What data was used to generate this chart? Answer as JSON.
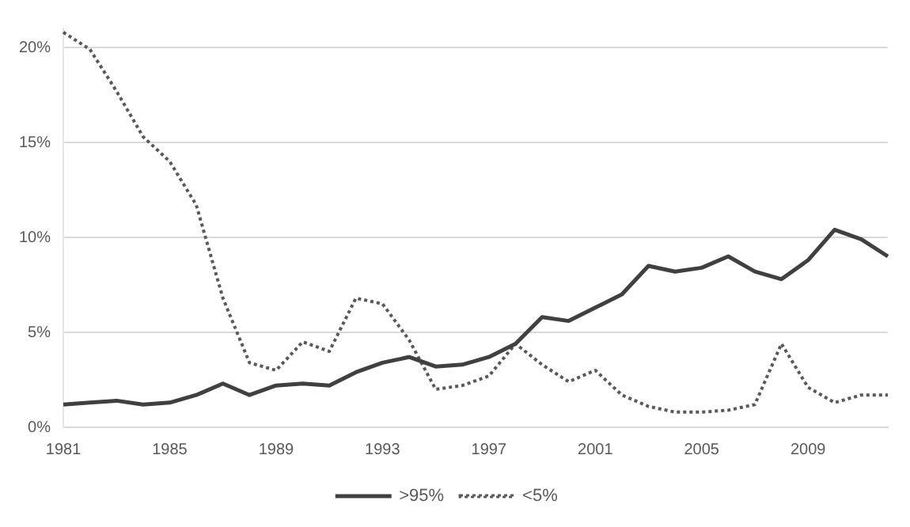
{
  "chart_data": {
    "type": "line",
    "categories": [
      "1981",
      null,
      null,
      null,
      "1985",
      null,
      null,
      null,
      "1989",
      null,
      null,
      null,
      "1993",
      null,
      null,
      null,
      "1997",
      null,
      null,
      null,
      "2001",
      null,
      null,
      null,
      "2005",
      null,
      null,
      null,
      "2009",
      null,
      null,
      null
    ],
    "series": [
      {
        "name": ">95%",
        "color": "#404040",
        "line_style": "solid",
        "values": [
          1.2,
          1.3,
          1.4,
          1.2,
          1.3,
          1.7,
          2.3,
          1.7,
          2.2,
          2.3,
          2.2,
          2.9,
          3.4,
          3.7,
          3.2,
          3.3,
          3.7,
          4.4,
          5.8,
          5.6,
          6.3,
          7.0,
          8.5,
          8.2,
          8.4,
          9.0,
          8.2,
          7.8,
          8.8,
          10.4,
          9.9,
          9.0
        ]
      },
      {
        "name": "<5%",
        "color": "#595959",
        "line_style": "dotted",
        "values": [
          20.8,
          19.9,
          17.7,
          15.3,
          14.0,
          11.7,
          6.8,
          3.4,
          3.0,
          4.5,
          4.0,
          6.8,
          6.5,
          4.6,
          2.0,
          2.2,
          2.7,
          4.4,
          3.3,
          2.4,
          3.0,
          1.7,
          1.1,
          0.8,
          0.8,
          0.9,
          1.2,
          4.4,
          2.1,
          1.3,
          1.7,
          1.7
        ]
      }
    ],
    "ylim": [
      0,
      21
    ],
    "yticks": [
      {
        "value": 0,
        "label": "0%"
      },
      {
        "value": 5,
        "label": "5%"
      },
      {
        "value": 10,
        "label": "10%"
      },
      {
        "value": 15,
        "label": "15%"
      },
      {
        "value": 20,
        "label": "20%"
      }
    ],
    "grid": "y",
    "legend": "bottom",
    "marker": "none"
  }
}
